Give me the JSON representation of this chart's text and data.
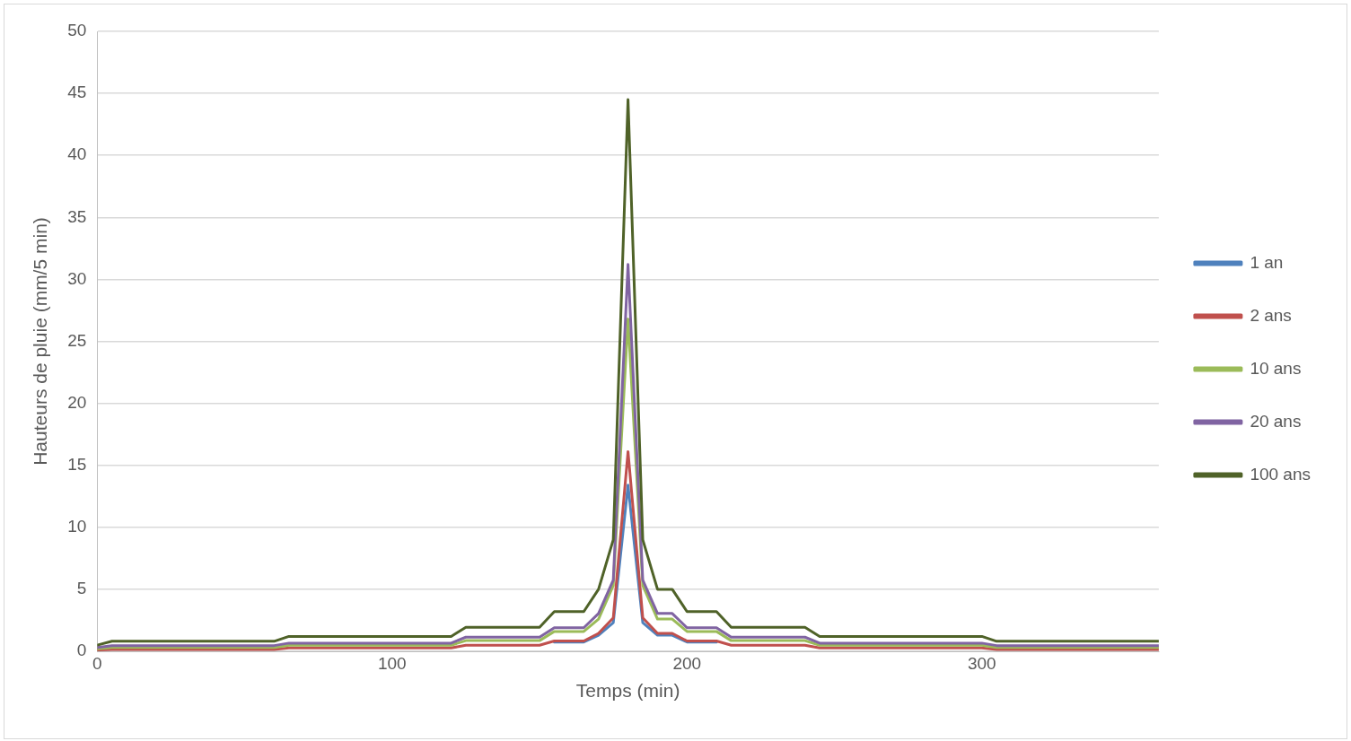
{
  "chart_data": {
    "type": "line",
    "xlabel": "Temps (min)",
    "ylabel": "Hauteurs de pluie (mm/5 min)",
    "x": [
      0,
      5,
      10,
      15,
      20,
      25,
      30,
      35,
      40,
      45,
      50,
      55,
      60,
      65,
      70,
      75,
      80,
      85,
      90,
      95,
      100,
      105,
      110,
      115,
      120,
      125,
      130,
      135,
      140,
      145,
      150,
      155,
      160,
      165,
      170,
      175,
      180,
      185,
      190,
      195,
      200,
      205,
      210,
      215,
      220,
      225,
      230,
      235,
      240,
      245,
      250,
      255,
      260,
      265,
      270,
      275,
      280,
      285,
      290,
      295,
      300,
      305,
      310,
      315,
      320,
      325,
      330,
      335,
      340,
      345,
      350,
      355,
      360
    ],
    "series": [
      {
        "name": "1 an",
        "color": "#4f81bd",
        "values": [
          null,
          null,
          null,
          null,
          null,
          null,
          null,
          null,
          null,
          null,
          null,
          null,
          null,
          null,
          null,
          null,
          null,
          null,
          null,
          null,
          null,
          null,
          null,
          null,
          null,
          null,
          null,
          null,
          null,
          null,
          null,
          0.75,
          0.75,
          0.75,
          1.3,
          2.3,
          13.4,
          2.3,
          1.3,
          1.3,
          0.75,
          0.75,
          0.75,
          null,
          null,
          null,
          null,
          null,
          null,
          null,
          null,
          null,
          null,
          null,
          null,
          null,
          null,
          null,
          null,
          null,
          null,
          null,
          null,
          null,
          null,
          null,
          null,
          null,
          null,
          null,
          null,
          null,
          null
        ]
      },
      {
        "name": "2 ans",
        "color": "#c0504d",
        "values": [
          0.1,
          0.15,
          0.15,
          0.15,
          0.15,
          0.15,
          0.15,
          0.15,
          0.15,
          0.15,
          0.15,
          0.15,
          0.15,
          0.27,
          0.27,
          0.27,
          0.27,
          0.27,
          0.27,
          0.27,
          0.27,
          0.27,
          0.27,
          0.27,
          0.27,
          0.49,
          0.49,
          0.49,
          0.49,
          0.49,
          0.49,
          0.83,
          0.83,
          0.83,
          1.45,
          2.7,
          16.1,
          2.7,
          1.45,
          1.45,
          0.83,
          0.83,
          0.83,
          0.49,
          0.49,
          0.49,
          0.49,
          0.49,
          0.49,
          0.27,
          0.27,
          0.27,
          0.27,
          0.27,
          0.27,
          0.27,
          0.27,
          0.27,
          0.27,
          0.27,
          0.27,
          0.15,
          0.15,
          0.15,
          0.15,
          0.15,
          0.15,
          0.15,
          0.15,
          0.15,
          0.15,
          0.15,
          0.15
        ]
      },
      {
        "name": "10 ans",
        "color": "#9bbb59",
        "values": [
          0.2,
          0.3,
          0.3,
          0.3,
          0.3,
          0.3,
          0.3,
          0.3,
          0.3,
          0.3,
          0.3,
          0.3,
          0.3,
          0.49,
          0.49,
          0.49,
          0.49,
          0.49,
          0.49,
          0.49,
          0.49,
          0.49,
          0.49,
          0.49,
          0.49,
          0.86,
          0.86,
          0.86,
          0.86,
          0.86,
          0.86,
          1.6,
          1.6,
          1.6,
          2.6,
          5.3,
          26.8,
          5.3,
          2.6,
          2.6,
          1.6,
          1.6,
          1.6,
          0.86,
          0.86,
          0.86,
          0.86,
          0.86,
          0.86,
          0.49,
          0.49,
          0.49,
          0.49,
          0.49,
          0.49,
          0.49,
          0.49,
          0.49,
          0.49,
          0.49,
          0.49,
          0.3,
          0.3,
          0.3,
          0.3,
          0.3,
          0.3,
          0.3,
          0.3,
          0.3,
          0.3,
          0.3,
          0.3
        ]
      },
      {
        "name": "20 ans",
        "color": "#8064a2",
        "values": [
          0.3,
          0.46,
          0.46,
          0.46,
          0.46,
          0.46,
          0.46,
          0.46,
          0.46,
          0.46,
          0.46,
          0.46,
          0.46,
          0.66,
          0.66,
          0.66,
          0.66,
          0.66,
          0.66,
          0.66,
          0.66,
          0.66,
          0.66,
          0.66,
          0.66,
          1.14,
          1.14,
          1.14,
          1.14,
          1.14,
          1.14,
          1.9,
          1.9,
          1.9,
          3.05,
          5.75,
          31.2,
          5.75,
          3.05,
          3.05,
          1.9,
          1.9,
          1.9,
          1.14,
          1.14,
          1.14,
          1.14,
          1.14,
          1.14,
          0.66,
          0.66,
          0.66,
          0.66,
          0.66,
          0.66,
          0.66,
          0.66,
          0.66,
          0.66,
          0.66,
          0.66,
          0.46,
          0.46,
          0.46,
          0.46,
          0.46,
          0.46,
          0.46,
          0.46,
          0.46,
          0.46,
          0.46,
          0.46
        ]
      },
      {
        "name": "100 ans",
        "color": "#4f6228",
        "values": [
          0.5,
          0.81,
          0.81,
          0.81,
          0.81,
          0.81,
          0.81,
          0.81,
          0.81,
          0.81,
          0.81,
          0.81,
          0.81,
          1.2,
          1.2,
          1.2,
          1.2,
          1.2,
          1.2,
          1.2,
          1.2,
          1.2,
          1.2,
          1.2,
          1.2,
          1.93,
          1.93,
          1.93,
          1.93,
          1.93,
          1.93,
          3.2,
          3.2,
          3.2,
          5.0,
          9.0,
          44.5,
          9.0,
          5.0,
          5.0,
          3.2,
          3.2,
          3.2,
          1.93,
          1.93,
          1.93,
          1.93,
          1.93,
          1.93,
          1.2,
          1.2,
          1.2,
          1.2,
          1.2,
          1.2,
          1.2,
          1.2,
          1.2,
          1.2,
          1.2,
          1.2,
          0.81,
          0.81,
          0.81,
          0.81,
          0.81,
          0.81,
          0.81,
          0.81,
          0.81,
          0.81,
          0.81,
          0.81
        ]
      }
    ],
    "xlim": [
      0,
      360
    ],
    "xticks": [
      0,
      100,
      200,
      300
    ],
    "ylim": [
      0,
      50
    ],
    "yticks": [
      0,
      5,
      10,
      15,
      20,
      25,
      30,
      35,
      40,
      45,
      50
    ],
    "grid": "y",
    "legend": "right",
    "marker": "none",
    "line_style": "solid"
  }
}
